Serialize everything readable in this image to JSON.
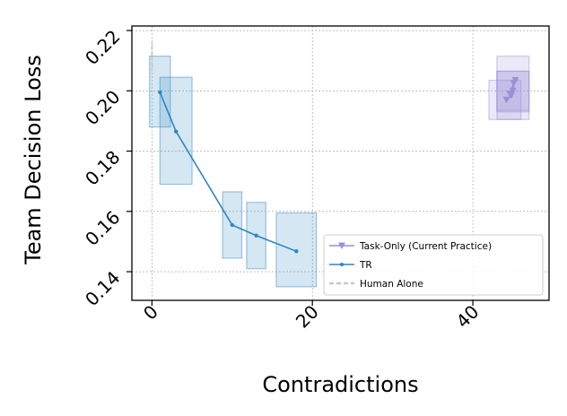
{
  "chart_data": {
    "type": "line",
    "xlabel": "Contradictions",
    "ylabel": "Team Decision Loss",
    "xlim": [
      -2.5,
      49.5
    ],
    "ylim": [
      0.1305,
      0.2215
    ],
    "xticks": [
      0,
      20,
      40
    ],
    "xtick_labels": [
      "0",
      "20",
      "40"
    ],
    "yticks": [
      0.14,
      0.16,
      0.18,
      0.2,
      0.22
    ],
    "ytick_labels": [
      "0.14",
      "0.16",
      "0.18",
      "0.20",
      "0.22"
    ],
    "grid": true,
    "legend_position": "lower-right",
    "series": [
      {
        "name": "Task-Only (Current Practice)",
        "color": "#9b8fd6",
        "marker": "triangle-down",
        "points": [
          [
            44.2,
            0.197
          ],
          [
            44.8,
            0.1985
          ],
          [
            45.0,
            0.2
          ],
          [
            45.1,
            0.2025
          ],
          [
            44.6,
            0.199
          ],
          [
            45.3,
            0.2035
          ]
        ],
        "boxes": [
          {
            "x0": 42.0,
            "x1": 46.0,
            "y0": 0.1905,
            "y1": 0.2035
          },
          {
            "x0": 43.0,
            "x1": 47.0,
            "y0": 0.193,
            "y1": 0.2115
          },
          {
            "x0": 43.0,
            "x1": 47.0,
            "y0": 0.1905,
            "y1": 0.2065
          },
          {
            "x0": 43.0,
            "x1": 47.0,
            "y0": 0.1935,
            "y1": 0.2065
          }
        ]
      },
      {
        "name": "TR",
        "color": "#2e86c1",
        "marker": "dot",
        "points": [
          [
            1.0,
            0.1995
          ],
          [
            3.0,
            0.1865
          ],
          [
            10.0,
            0.1555
          ],
          [
            13.0,
            0.152
          ],
          [
            18.0,
            0.1468
          ]
        ],
        "boxes": [
          {
            "x0": -0.3,
            "x1": 2.3,
            "y0": 0.188,
            "y1": 0.2115
          },
          {
            "x0": 1.0,
            "x1": 5.0,
            "y0": 0.169,
            "y1": 0.2045
          },
          {
            "x0": 8.8,
            "x1": 11.2,
            "y0": 0.1445,
            "y1": 0.1665
          },
          {
            "x0": 11.8,
            "x1": 14.2,
            "y0": 0.141,
            "y1": 0.163
          },
          {
            "x0": 15.5,
            "x1": 20.5,
            "y0": 0.135,
            "y1": 0.1595
          }
        ]
      },
      {
        "name": "Human Alone",
        "color": "#c8c8c8",
        "marker": "none",
        "dashed": true,
        "segment": {
          "x": 0.0,
          "y0": 0.2065,
          "y1": 0.216
        }
      }
    ]
  }
}
